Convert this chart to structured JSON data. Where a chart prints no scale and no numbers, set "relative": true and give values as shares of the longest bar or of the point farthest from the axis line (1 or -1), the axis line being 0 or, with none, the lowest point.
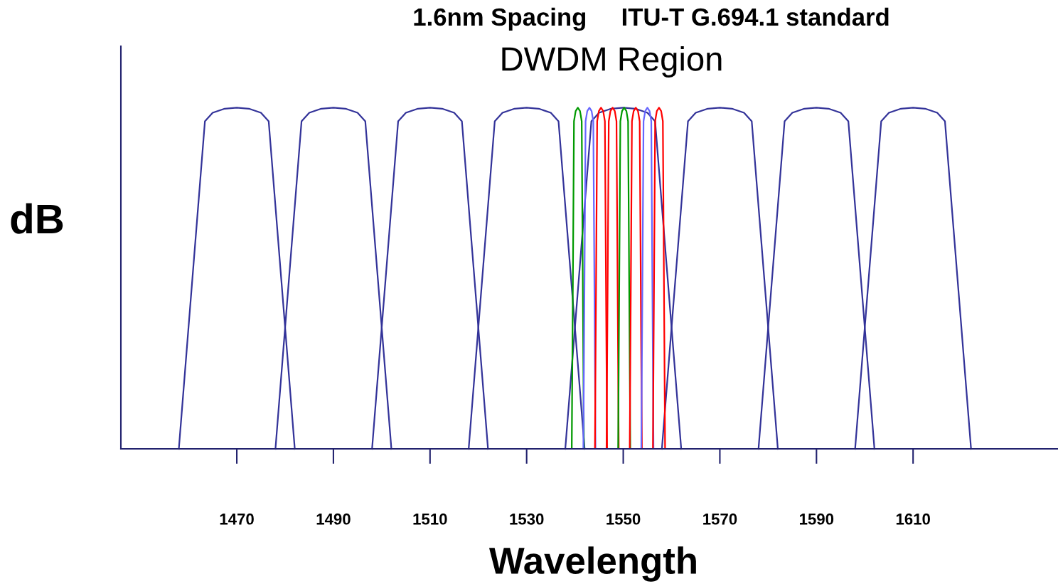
{
  "chart_data": {
    "type": "line",
    "relative": true,
    "title": "1.6nm Spacing     ITU-T G.694.1 standard",
    "subtitle": "DWDM Region",
    "xlabel": "Wavelength",
    "ylabel": "dB",
    "xlim": [
      1446,
      1640
    ],
    "xticks": [
      1470,
      1490,
      1510,
      1530,
      1550,
      1570,
      1590,
      1610
    ],
    "grid": false,
    "tick_labels": "x",
    "marker": "none",
    "line_style": "solid",
    "series": [
      {
        "color": "#333399",
        "x": [
          1458,
          1463.4,
          1465,
          1467.5,
          1470,
          1472.5,
          1475,
          1476.6,
          1482
        ],
        "values": [
          0,
          0.96,
          0.985,
          0.997,
          1,
          0.997,
          0.985,
          0.96,
          0
        ]
      },
      {
        "color": "#333399",
        "x": [
          1478,
          1483.4,
          1485,
          1487.5,
          1490,
          1492.5,
          1495,
          1496.6,
          1502
        ],
        "values": [
          0,
          0.96,
          0.985,
          0.997,
          1,
          0.997,
          0.985,
          0.96,
          0
        ]
      },
      {
        "color": "#333399",
        "x": [
          1498,
          1503.4,
          1505,
          1507.5,
          1510,
          1512.5,
          1515,
          1516.6,
          1522
        ],
        "values": [
          0,
          0.96,
          0.985,
          0.997,
          1,
          0.997,
          0.985,
          0.96,
          0
        ]
      },
      {
        "color": "#333399",
        "x": [
          1518,
          1523.4,
          1525,
          1527.5,
          1530,
          1532.5,
          1535,
          1536.6,
          1542
        ],
        "values": [
          0,
          0.96,
          0.985,
          0.997,
          1,
          0.997,
          0.985,
          0.96,
          0
        ]
      },
      {
        "color": "#333399",
        "x": [
          1538,
          1543.4,
          1545,
          1547.5,
          1550,
          1552.5,
          1555,
          1556.6,
          1562
        ],
        "values": [
          0,
          0.96,
          0.985,
          0.997,
          1,
          0.997,
          0.985,
          0.96,
          0
        ]
      },
      {
        "color": "#333399",
        "x": [
          1558,
          1563.4,
          1565,
          1567.5,
          1570,
          1572.5,
          1575,
          1576.6,
          1582
        ],
        "values": [
          0,
          0.96,
          0.985,
          0.997,
          1,
          0.997,
          0.985,
          0.96,
          0
        ]
      },
      {
        "color": "#333399",
        "x": [
          1578,
          1583.4,
          1585,
          1587.5,
          1590,
          1592.5,
          1595,
          1596.6,
          1602
        ],
        "values": [
          0,
          0.96,
          0.985,
          0.997,
          1,
          0.997,
          0.985,
          0.96,
          0
        ]
      },
      {
        "color": "#333399",
        "x": [
          1598,
          1603.4,
          1605,
          1607.5,
          1610,
          1612.5,
          1615,
          1616.6,
          1622
        ],
        "values": [
          0,
          0.96,
          0.985,
          0.997,
          1,
          0.997,
          0.985,
          0.96,
          0
        ]
      },
      {
        "color": "#009900",
        "x": [
          1539.34,
          1539.8,
          1540.15,
          1540.6,
          1541.05,
          1541.4,
          1541.86
        ],
        "values": [
          0,
          0.96,
          0.99,
          1,
          0.99,
          0.96,
          0
        ]
      },
      {
        "color": "#6666ff",
        "x": [
          1541.74,
          1542.2,
          1542.55,
          1543,
          1543.45,
          1543.8,
          1544.26
        ],
        "values": [
          0,
          0.96,
          0.99,
          1,
          0.99,
          0.96,
          0
        ]
      },
      {
        "color": "#ff0000",
        "x": [
          1544.14,
          1544.6,
          1544.95,
          1545.4,
          1545.85,
          1546.2,
          1546.66
        ],
        "values": [
          0,
          0.96,
          0.99,
          1,
          0.99,
          0.96,
          0
        ]
      },
      {
        "color": "#ff0000",
        "x": [
          1546.54,
          1547,
          1547.35,
          1547.8,
          1548.25,
          1548.6,
          1549.06
        ],
        "values": [
          0,
          0.96,
          0.99,
          1,
          0.99,
          0.96,
          0
        ]
      },
      {
        "color": "#009900",
        "x": [
          1548.94,
          1549.4,
          1549.75,
          1550.2,
          1550.65,
          1551,
          1551.46
        ],
        "values": [
          0,
          0.96,
          0.99,
          1,
          0.99,
          0.96,
          0
        ]
      },
      {
        "color": "#ff0000",
        "x": [
          1551.34,
          1551.8,
          1552.15,
          1552.6,
          1553.05,
          1553.4,
          1553.86
        ],
        "values": [
          0,
          0.96,
          0.99,
          1,
          0.99,
          0.96,
          0
        ]
      },
      {
        "color": "#6666ff",
        "x": [
          1553.74,
          1554.2,
          1554.55,
          1555,
          1555.45,
          1555.8,
          1556.26
        ],
        "values": [
          0,
          0.96,
          0.99,
          1,
          0.99,
          0.96,
          0
        ]
      },
      {
        "color": "#ff0000",
        "x": [
          1556.14,
          1556.6,
          1556.95,
          1557.4,
          1557.85,
          1558.2,
          1558.66
        ],
        "values": [
          0,
          0.96,
          0.99,
          1,
          0.99,
          0.96,
          0
        ]
      }
    ]
  }
}
